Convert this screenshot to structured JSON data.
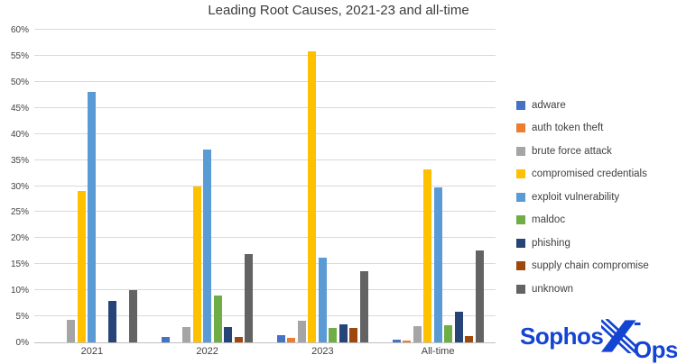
{
  "title": "Leading Root Causes, 2021-23 and all-time",
  "logo": {
    "part1": "Sophos",
    "part2": "-Ops"
  },
  "colors": {
    "gridline": "#d9d9d9",
    "axis_line": "#bfbfbf",
    "tick_text": "#404040",
    "logo_blue": "#1444d2"
  },
  "chart_data": {
    "type": "bar",
    "title": "Leading Root Causes, 2021-23 and all-time",
    "categories": [
      "2021",
      "2022",
      "2023",
      "All-time"
    ],
    "series": [
      {
        "name": "adware",
        "color": "#4472C4",
        "values": [
          0,
          1,
          1.3,
          0.6
        ]
      },
      {
        "name": "auth token theft",
        "color": "#ED7D31",
        "values": [
          0,
          0,
          0.9,
          0.3
        ]
      },
      {
        "name": "brute force attack",
        "color": "#A5A5A5",
        "values": [
          4.3,
          2.9,
          4.2,
          3.1
        ]
      },
      {
        "name": "compromised credentials",
        "color": "#FFC000",
        "values": [
          29,
          30,
          55.8,
          33.2
        ]
      },
      {
        "name": "exploit vulnerability",
        "color": "#5B9BD5",
        "values": [
          48,
          37,
          16.3,
          29.8
        ]
      },
      {
        "name": "maldoc",
        "color": "#70AD47",
        "values": [
          0,
          9,
          2.8,
          3.3
        ]
      },
      {
        "name": "phishing",
        "color": "#264478",
        "values": [
          8,
          3,
          3.5,
          5.8
        ]
      },
      {
        "name": "supply chain compromise",
        "color": "#9E480E",
        "values": [
          0,
          1,
          2.8,
          1.2
        ]
      },
      {
        "name": "unknown",
        "color": "#636363",
        "values": [
          10,
          17,
          13.7,
          17.7
        ]
      }
    ],
    "ylim": [
      0,
      60
    ],
    "ytick_step": 5,
    "ytick_format": "percent",
    "grid": true,
    "legend_position": "right"
  }
}
